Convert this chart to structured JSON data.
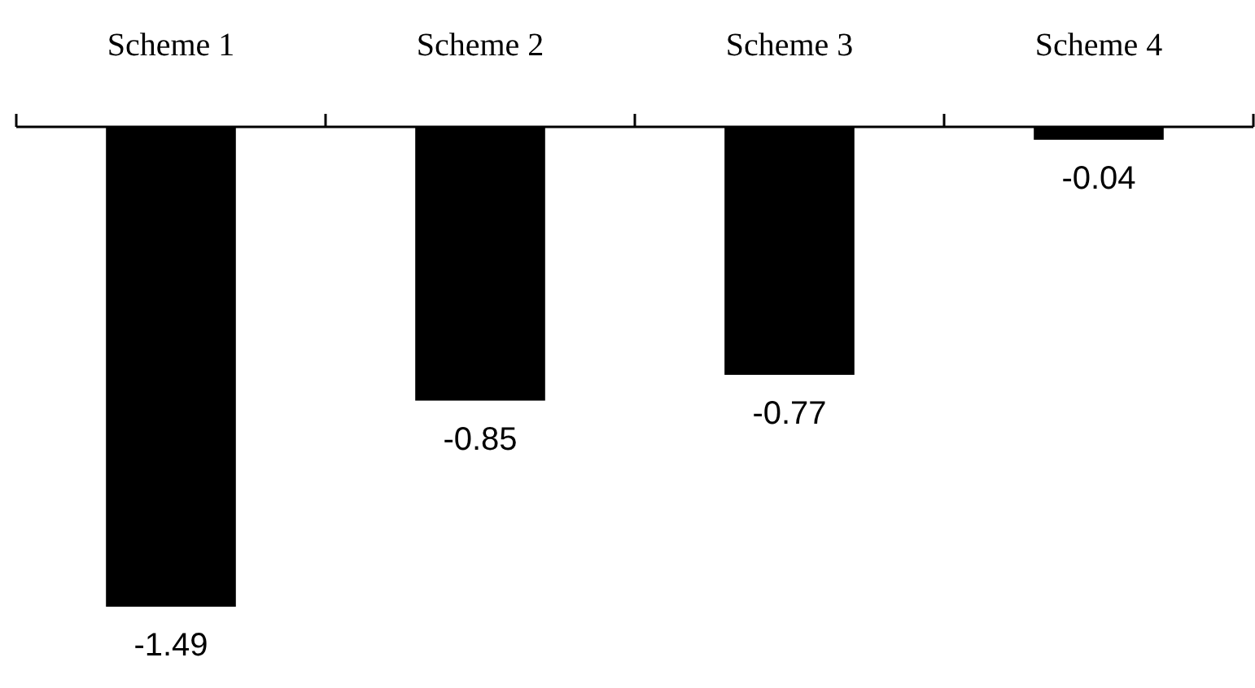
{
  "chart_data": {
    "type": "bar",
    "categories": [
      "Scheme 1",
      "Scheme 2",
      "Scheme 3",
      "Scheme 4"
    ],
    "values": [
      -1.49,
      -0.85,
      -0.77,
      -0.04
    ],
    "color": "#000000",
    "data_labels": true
  }
}
